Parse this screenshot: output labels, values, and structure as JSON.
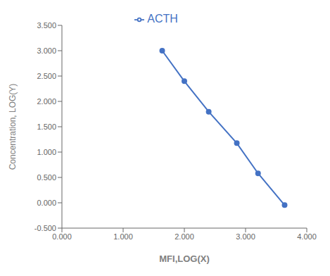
{
  "chart_data": {
    "type": "line",
    "xlabel": "MFI,LOG(X)",
    "ylabel": "Concentration, LOG(Y)",
    "x": [
      1.638,
      2.0,
      2.398,
      2.857,
      3.204,
      3.638
    ],
    "series": [
      {
        "name": "ACTH",
        "color": "#4472C4",
        "marker": "circle",
        "values": [
          3.0,
          2.398,
          1.796,
          1.176,
          0.58,
          -0.046
        ]
      }
    ],
    "xlim": [
      0.0,
      4.0
    ],
    "ylim": [
      -0.5,
      3.5
    ],
    "xticks": [
      {
        "value": 0,
        "label": "0.000"
      },
      {
        "value": 1,
        "label": "1.000"
      },
      {
        "value": 2,
        "label": "2.000"
      },
      {
        "value": 3,
        "label": "3.000"
      },
      {
        "value": 4,
        "label": "4.000"
      }
    ],
    "yticks": [
      {
        "value": -0.5,
        "label": "-0.500"
      },
      {
        "value": 0,
        "label": "0.000"
      },
      {
        "value": 0.5,
        "label": "0.500"
      },
      {
        "value": 1,
        "label": "1.000"
      },
      {
        "value": 1.5,
        "label": "1.500"
      },
      {
        "value": 2,
        "label": "2.000"
      },
      {
        "value": 2.5,
        "label": "2.500"
      },
      {
        "value": 3,
        "label": "3.000"
      },
      {
        "value": 3.5,
        "label": "3.500"
      }
    ],
    "grid": false,
    "legend": "top"
  }
}
